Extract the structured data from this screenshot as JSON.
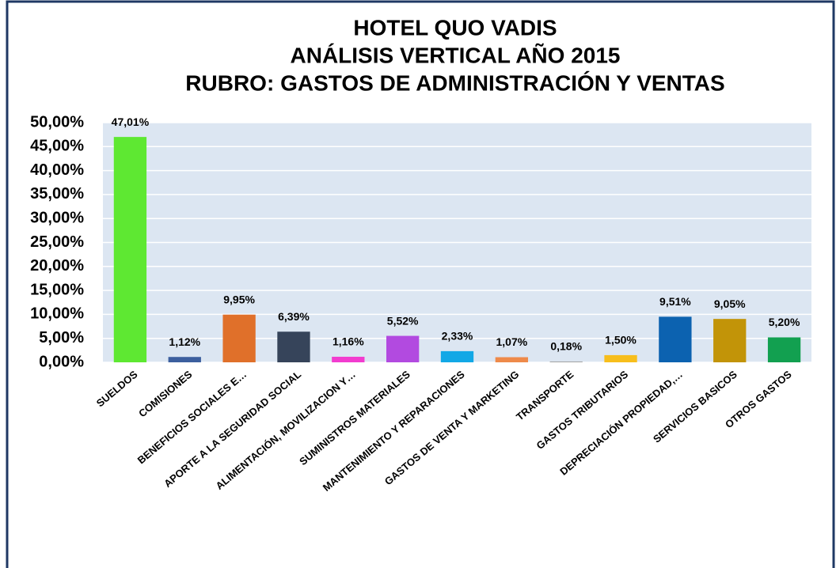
{
  "chart_data": {
    "type": "bar",
    "title": [
      "HOTEL QUO VADIS",
      "ANÁLISIS VERTICAL AÑO 2015",
      "RUBRO: GASTOS DE ADMINISTRACIÓN Y VENTAS"
    ],
    "categories": [
      "SUELDOS",
      "COMISIONES",
      "BENEFICIOS SOCIALES E…",
      "APORTE A LA SEGURIDAD SOCIAL",
      "ALIMENTACIÓN, MOVILIZACION Y…",
      "SUMINISTROS MATERIALES",
      "MANTENIMIENTO Y REPARACIONES",
      "GASTOS DE VENTA Y MARKETING",
      "TRANSPORTE",
      "GASTOS TRIBUTARIOS",
      "DEPRECIACIÓN PROPIEDAD,…",
      "SERVICIOS BASICOS",
      "OTROS GASTOS"
    ],
    "values": [
      47.01,
      1.12,
      9.95,
      6.39,
      1.16,
      5.52,
      2.33,
      1.07,
      0.18,
      1.5,
      9.51,
      9.05,
      5.2
    ],
    "value_labels": [
      "47,01%",
      "1,12%",
      "9,95%",
      "6,39%",
      "1,16%",
      "5,52%",
      "2,33%",
      "1,07%",
      "0,18%",
      "1,50%",
      "9,51%",
      "9,05%",
      "5,20%"
    ],
    "colors": [
      "#5ee832",
      "#3c5f9e",
      "#e0702a",
      "#36445a",
      "#f23ccf",
      "#b24ae0",
      "#12a8e6",
      "#ee8a4a",
      "#a6a6a6",
      "#f7be1c",
      "#0c62b0",
      "#c29408",
      "#12a050"
    ],
    "ylim": [
      0,
      50
    ],
    "yticks": [
      {
        "value": 0,
        "label": "0,00%"
      },
      {
        "value": 5,
        "label": "5,00%"
      },
      {
        "value": 10,
        "label": "10,00%"
      },
      {
        "value": 15,
        "label": "15,00%"
      },
      {
        "value": 20,
        "label": "20,00%"
      },
      {
        "value": 25,
        "label": "25,00%"
      },
      {
        "value": 30,
        "label": "30,00%"
      },
      {
        "value": 35,
        "label": "35,00%"
      },
      {
        "value": 40,
        "label": "40,00%"
      },
      {
        "value": 45,
        "label": "45,00%"
      },
      {
        "value": 50,
        "label": "50,00%"
      }
    ],
    "grid": true
  }
}
